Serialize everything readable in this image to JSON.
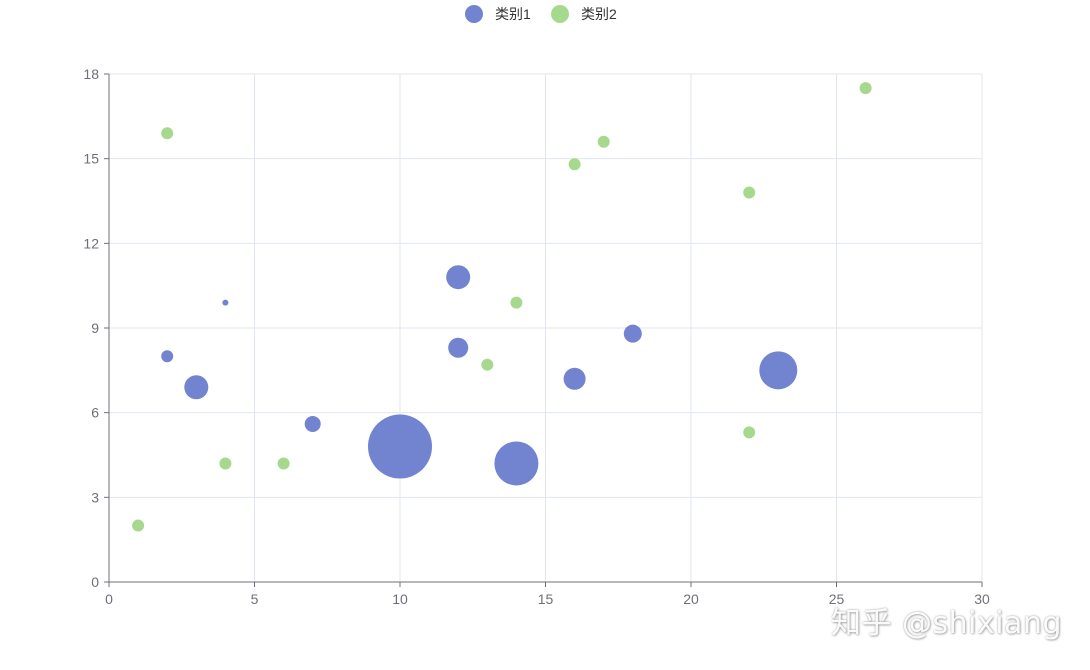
{
  "chart_data": {
    "type": "scatter",
    "subtype": "bubble",
    "title": "",
    "xlabel": "",
    "ylabel": "",
    "xlim": [
      0,
      30
    ],
    "ylim": [
      0,
      18
    ],
    "x_ticks": [
      0,
      5,
      10,
      15,
      20,
      25,
      30
    ],
    "y_ticks": [
      0,
      3,
      6,
      9,
      12,
      15,
      18
    ],
    "grid": true,
    "legend_position": "top-center",
    "series": [
      {
        "name": "类别1",
        "color": "#7283cf",
        "points": [
          {
            "x": 2,
            "y": 8.0,
            "size": 6
          },
          {
            "x": 3,
            "y": 6.9,
            "size": 12
          },
          {
            "x": 4,
            "y": 9.9,
            "size": 3
          },
          {
            "x": 7,
            "y": 5.6,
            "size": 8
          },
          {
            "x": 10,
            "y": 4.8,
            "size": 32
          },
          {
            "x": 12,
            "y": 10.8,
            "size": 12
          },
          {
            "x": 12,
            "y": 8.3,
            "size": 10
          },
          {
            "x": 14,
            "y": 4.2,
            "size": 22
          },
          {
            "x": 16,
            "y": 7.2,
            "size": 11
          },
          {
            "x": 18,
            "y": 8.8,
            "size": 9
          },
          {
            "x": 23,
            "y": 7.5,
            "size": 19
          }
        ]
      },
      {
        "name": "类别2",
        "color": "#a6d88e",
        "points": [
          {
            "x": 1,
            "y": 2.0,
            "size": 6
          },
          {
            "x": 2,
            "y": 15.9,
            "size": 6
          },
          {
            "x": 4,
            "y": 4.2,
            "size": 6
          },
          {
            "x": 6,
            "y": 4.2,
            "size": 6
          },
          {
            "x": 13,
            "y": 7.7,
            "size": 6
          },
          {
            "x": 14,
            "y": 9.9,
            "size": 6
          },
          {
            "x": 16,
            "y": 14.8,
            "size": 6
          },
          {
            "x": 17,
            "y": 15.6,
            "size": 6
          },
          {
            "x": 22,
            "y": 13.8,
            "size": 6
          },
          {
            "x": 22,
            "y": 5.3,
            "size": 6
          },
          {
            "x": 26,
            "y": 17.5,
            "size": 6
          }
        ]
      }
    ]
  },
  "watermark": "知乎 @shixiang",
  "colors": {
    "axis": "#6e7079",
    "grid": "#e0e6f1",
    "label": "#6e7079",
    "legend_text": "#333333"
  }
}
